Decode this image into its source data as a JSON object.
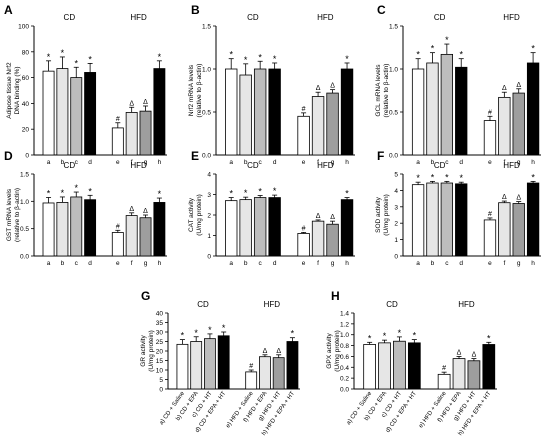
{
  "chart_data": [
    {
      "type": "bar",
      "panel": "A",
      "group_labels": [
        "CD",
        "HFD"
      ],
      "categories": [
        "a",
        "b",
        "c",
        "d",
        "e",
        "f",
        "g",
        "h"
      ],
      "ylabel": [
        "Adipose tissue Nrf2",
        "DNA binding (%)"
      ],
      "ylim": [
        0,
        100
      ],
      "yticks": [
        "0",
        "20",
        "40",
        "60",
        "80",
        "100"
      ],
      "values": [
        65,
        67,
        60,
        64,
        21,
        33,
        34,
        67
      ],
      "errors": [
        8,
        9,
        8,
        7,
        4,
        4,
        4,
        6
      ],
      "annotations": [
        "*",
        "*",
        "*",
        "*",
        "#",
        "Δ",
        "Δ",
        "*"
      ]
    },
    {
      "type": "bar",
      "panel": "B",
      "group_labels": [
        "CD",
        "HFD"
      ],
      "categories": [
        "a",
        "b",
        "c",
        "d",
        "e",
        "f",
        "g",
        "h"
      ],
      "ylabel": [
        "Nrf2 mRNA levels",
        "(relative to β-actin)"
      ],
      "ylim": [
        0,
        1.5
      ],
      "yticks": [
        "0.0",
        "0.5",
        "1.0",
        "1.5"
      ],
      "values": [
        1.0,
        0.93,
        1.0,
        1.0,
        0.45,
        0.68,
        0.72,
        1.0
      ],
      "errors": [
        0.12,
        0.13,
        0.09,
        0.07,
        0.04,
        0.05,
        0.04,
        0.07
      ],
      "annotations": [
        "*",
        "*",
        "*",
        "*",
        "#",
        "Δ",
        "Δ",
        "*"
      ]
    },
    {
      "type": "bar",
      "panel": "C",
      "group_labels": [
        "CD",
        "HFD"
      ],
      "categories": [
        "a",
        "b",
        "c",
        "d",
        "e",
        "f",
        "g",
        "h"
      ],
      "ylabel": [
        "GCL mRNA levels",
        "(relative to β-actin)"
      ],
      "ylim": [
        0,
        1.5
      ],
      "yticks": [
        "0.0",
        "0.5",
        "1.0",
        "1.5"
      ],
      "values": [
        1.0,
        1.07,
        1.17,
        1.02,
        0.4,
        0.67,
        0.72,
        1.07
      ],
      "errors": [
        0.12,
        0.12,
        0.12,
        0.1,
        0.05,
        0.06,
        0.05,
        0.12
      ],
      "annotations": [
        "*",
        "*",
        "*",
        "*",
        "#",
        "Δ",
        "Δ",
        "*"
      ]
    },
    {
      "type": "bar",
      "panel": "D",
      "group_labels": [
        "CD",
        "HFD"
      ],
      "categories": [
        "a",
        "b",
        "c",
        "d",
        "e",
        "f",
        "g",
        "h"
      ],
      "ylabel": [
        "GST mRNA levels",
        "(relative to β-actin)"
      ],
      "ylim": [
        0,
        1.5
      ],
      "yticks": [
        "0.0",
        "0.5",
        "1.0",
        "1.5"
      ],
      "values": [
        0.97,
        0.98,
        1.08,
        1.03,
        0.43,
        0.74,
        0.7,
        0.98
      ],
      "errors": [
        0.1,
        0.1,
        0.09,
        0.08,
        0.04,
        0.05,
        0.05,
        0.08
      ],
      "annotations": [
        "*",
        "*",
        "*",
        "*",
        "#",
        "Δ",
        "Δ",
        "*"
      ]
    },
    {
      "type": "bar",
      "panel": "E",
      "group_labels": [
        "CD",
        "HFD"
      ],
      "categories": [
        "a",
        "b",
        "c",
        "d",
        "e",
        "f",
        "g",
        "h"
      ],
      "ylabel": [
        "CAT activity",
        "(U/mg protein)"
      ],
      "ylim": [
        0,
        4
      ],
      "yticks": [
        "0",
        "1",
        "2",
        "3",
        "4"
      ],
      "values": [
        2.7,
        2.75,
        2.85,
        2.85,
        1.1,
        1.7,
        1.55,
        2.75
      ],
      "errors": [
        0.15,
        0.12,
        0.1,
        0.12,
        0.05,
        0.06,
        0.15,
        0.1
      ],
      "annotations": [
        "*",
        "*",
        "*",
        "*",
        "#",
        "Δ",
        "Δ",
        "*"
      ]
    },
    {
      "type": "bar",
      "panel": "F",
      "group_labels": [
        "CD",
        "HFD"
      ],
      "categories": [
        "a",
        "b",
        "c",
        "d",
        "e",
        "f",
        "g",
        "h"
      ],
      "ylabel": [
        "SOD activity",
        "(U/mg protein)"
      ],
      "ylim": [
        0,
        5
      ],
      "yticks": [
        "0",
        "1",
        "2",
        "3",
        "4",
        "5"
      ],
      "values": [
        4.35,
        4.45,
        4.45,
        4.4,
        2.2,
        3.25,
        3.2,
        4.45
      ],
      "errors": [
        0.15,
        0.1,
        0.1,
        0.1,
        0.12,
        0.1,
        0.12,
        0.1
      ],
      "annotations": [
        "*",
        "*",
        "*",
        "*",
        "#",
        "Δ",
        "Δ",
        "*"
      ]
    },
    {
      "type": "bar",
      "panel": "G",
      "group_labels": [
        "CD",
        "HFD"
      ],
      "categories": [
        "a) CD + Saline",
        "b) CD + EPA",
        "c) CD + HT",
        "d) CD + EPA + HT",
        "e) HFD + Saline",
        "f) HFD + EPA",
        "g) HFD + HT",
        "h) HFD + EPA + HT"
      ],
      "ylabel": [
        "GR activity",
        "(U/mg protein)"
      ],
      "ylim": [
        0,
        40
      ],
      "yticks": [
        "0",
        "5",
        "10",
        "15",
        "20",
        "25",
        "30",
        "35",
        "40"
      ],
      "values": [
        23.5,
        25,
        26.5,
        28,
        9,
        17,
        16.5,
        25
      ],
      "errors": [
        2.5,
        2.5,
        2.5,
        2,
        1,
        1,
        1.5,
        2
      ],
      "annotations": [
        "*",
        "*",
        "*",
        "*",
        "#",
        "Δ",
        "Δ",
        "*"
      ]
    },
    {
      "type": "bar",
      "panel": "H",
      "group_labels": [
        "CD",
        "HFD"
      ],
      "categories": [
        "a) CD + Saline",
        "b) CD + EPA",
        "c) CD + HT",
        "d) CD + EPA + HT",
        "e) HFD + Saline",
        "f) HFD + EPA",
        "g) HFD + HT",
        "h) HFD + EPA + HT"
      ],
      "ylabel": [
        "GPX activity",
        "(U/mg protein)"
      ],
      "ylim": [
        0,
        1.4
      ],
      "yticks": [
        "0.0",
        "0.2",
        "0.4",
        "0.6",
        "0.8",
        "1.0",
        "1.2",
        "1.4"
      ],
      "values": [
        0.82,
        0.85,
        0.88,
        0.85,
        0.27,
        0.56,
        0.52,
        0.82
      ],
      "errors": [
        0.04,
        0.05,
        0.08,
        0.06,
        0.04,
        0.04,
        0.04,
        0.04
      ],
      "annotations": [
        "*",
        "*",
        "*",
        "*",
        "#",
        "Δ",
        "Δ",
        "*"
      ]
    }
  ],
  "bar_colors": [
    "#ffffff",
    "#e6e6e6",
    "#bdbdbd",
    "#000000",
    "#ffffff",
    "#e6e6e6",
    "#9e9e9e",
    "#000000"
  ]
}
